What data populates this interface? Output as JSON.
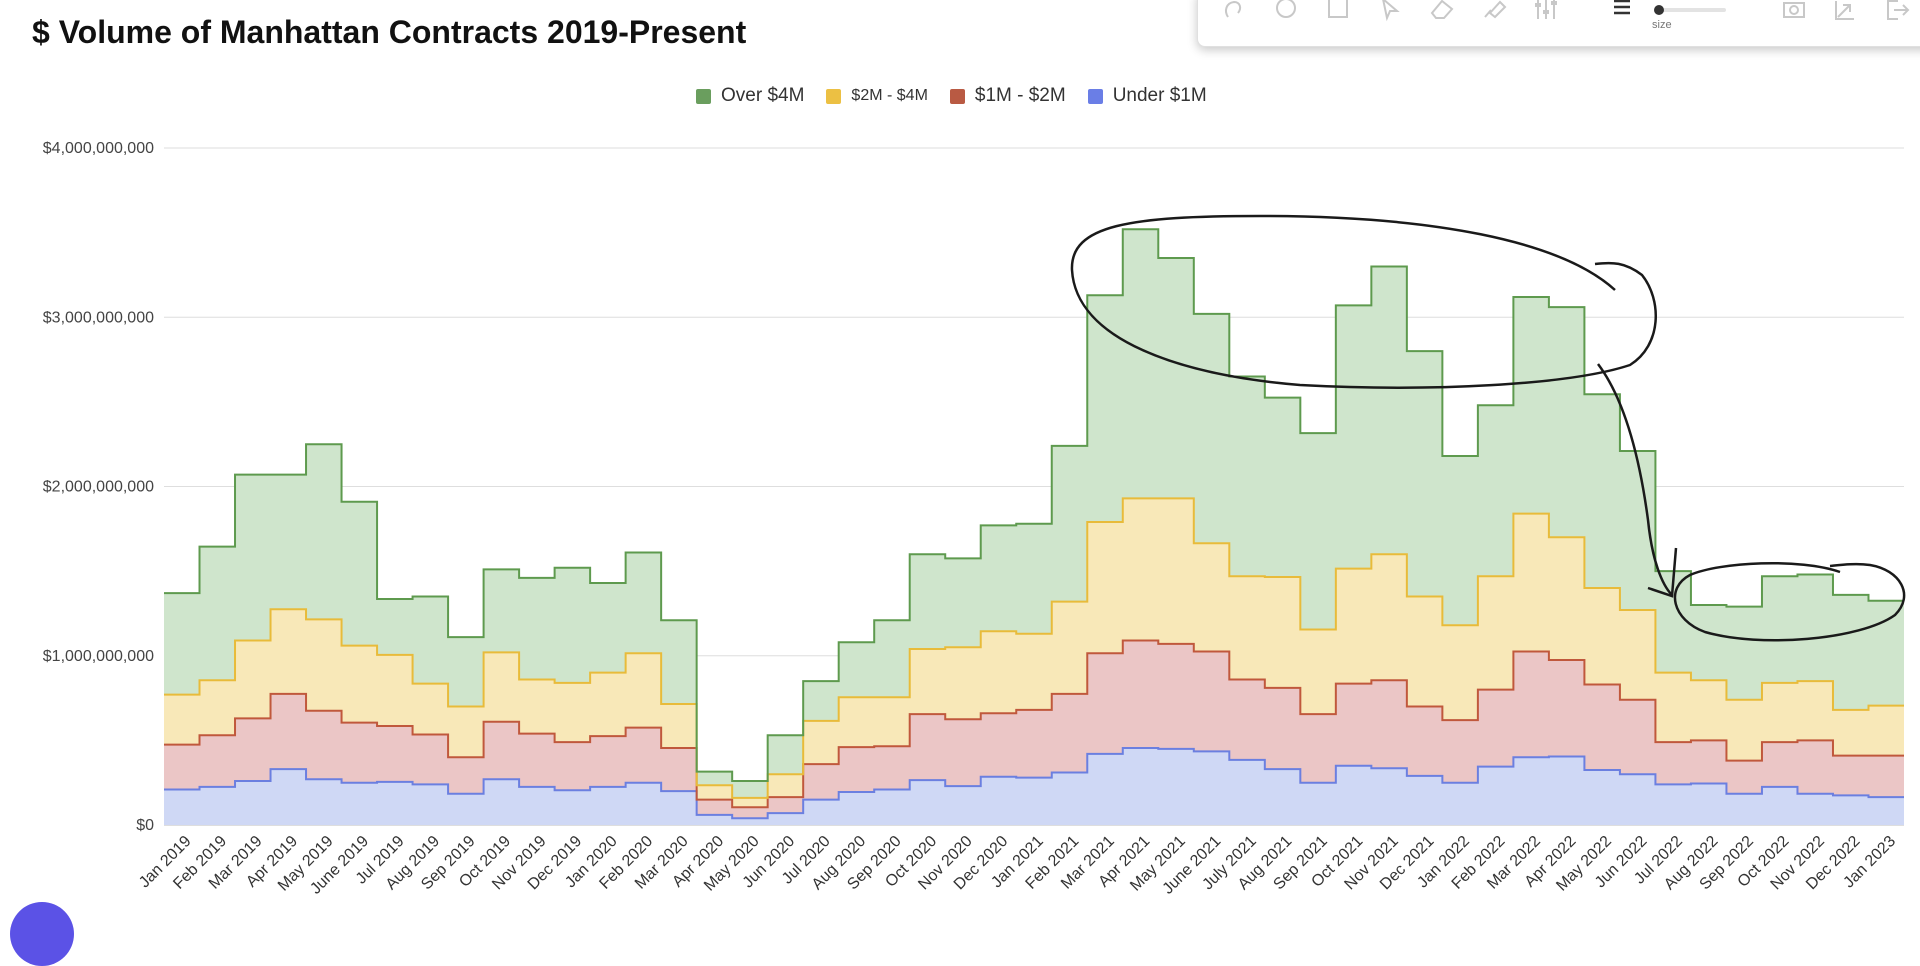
{
  "chart_data": {
    "type": "area",
    "stacked": true,
    "step": true,
    "title": "$ Volume of Manhattan Contracts 2019-Present",
    "xlabel": "",
    "ylabel": "",
    "ylim": [
      0,
      4000000000
    ],
    "yticks": [
      0,
      1000000000,
      2000000000,
      3000000000,
      4000000000
    ],
    "ytick_labels": [
      "$0",
      "$1,000,000,000",
      "$2,000,000,000",
      "$3,000,000,000",
      "$4,000,000,000"
    ],
    "grid": true,
    "legend_position": "top-center",
    "categories": [
      "Jan 2019",
      "Feb 2019",
      "Mar 2019",
      "Apr 2019",
      "May 2019",
      "June 2019",
      "Jul 2019",
      "Aug 2019",
      "Sep 2019",
      "Oct 2019",
      "Nov 2019",
      "Dec 2019",
      "Jan 2020",
      "Feb 2020",
      "Mar 2020",
      "Apr 2020",
      "May 2020",
      "Jun 2020",
      "Jul 2020",
      "Aug 2020",
      "Sep 2020",
      "Oct 2020",
      "Nov 2020",
      "Dec 2020",
      "Jan 2021",
      "Feb 2021",
      "Mar 2021",
      "Apr 2021",
      "May 2021",
      "June 2021",
      "July 2021",
      "Aug 2021",
      "Sep 2021",
      "Oct 2021",
      "Nov 2021",
      "Dec 2021",
      "Jan 2022",
      "Feb 2022",
      "Mar 2022",
      "Apr 2022",
      "May 2022",
      "Jun 2022",
      "Jul 2022",
      "Aug 2022",
      "Sep 2022",
      "Oct 2022",
      "Nov 2022",
      "Dec 2022",
      "Jan 2023"
    ],
    "series": [
      {
        "name": "Under $1M",
        "color": "#6b7fe0",
        "fill": "#cfd8f5",
        "values": [
          210000000,
          225000000,
          260000000,
          330000000,
          270000000,
          250000000,
          255000000,
          240000000,
          185000000,
          270000000,
          225000000,
          205000000,
          225000000,
          250000000,
          200000000,
          60000000,
          40000000,
          70000000,
          150000000,
          195000000,
          210000000,
          265000000,
          230000000,
          285000000,
          280000000,
          310000000,
          420000000,
          455000000,
          450000000,
          435000000,
          385000000,
          330000000,
          250000000,
          350000000,
          335000000,
          290000000,
          250000000,
          345000000,
          400000000,
          405000000,
          325000000,
          300000000,
          240000000,
          245000000,
          185000000,
          225000000,
          185000000,
          175000000,
          165000000
        ]
      },
      {
        "name": "$1M - $2M",
        "color": "#c0583c",
        "fill": "#ebc6c6",
        "values": [
          265000000,
          305000000,
          370000000,
          445000000,
          405000000,
          355000000,
          330000000,
          295000000,
          215000000,
          340000000,
          315000000,
          285000000,
          300000000,
          325000000,
          255000000,
          90000000,
          65000000,
          95000000,
          210000000,
          265000000,
          255000000,
          390000000,
          395000000,
          375000000,
          400000000,
          465000000,
          595000000,
          635000000,
          620000000,
          590000000,
          475000000,
          480000000,
          405000000,
          485000000,
          520000000,
          410000000,
          370000000,
          455000000,
          625000000,
          570000000,
          505000000,
          440000000,
          250000000,
          255000000,
          195000000,
          265000000,
          315000000,
          235000000,
          245000000
        ]
      },
      {
        "name": "$2M - $4M",
        "color": "#e8bb3a",
        "fill": "#f8e8b8",
        "values": [
          295000000,
          325000000,
          460000000,
          500000000,
          540000000,
          455000000,
          420000000,
          300000000,
          300000000,
          410000000,
          320000000,
          350000000,
          375000000,
          440000000,
          260000000,
          85000000,
          55000000,
          135000000,
          255000000,
          295000000,
          290000000,
          385000000,
          425000000,
          485000000,
          450000000,
          545000000,
          775000000,
          840000000,
          860000000,
          640000000,
          610000000,
          655000000,
          500000000,
          680000000,
          745000000,
          650000000,
          560000000,
          670000000,
          815000000,
          725000000,
          570000000,
          530000000,
          410000000,
          355000000,
          360000000,
          350000000,
          350000000,
          270000000,
          295000000
        ]
      },
      {
        "name": "Over $4M",
        "color": "#5e9a4e",
        "fill": "#cfe5cc",
        "values": [
          600000000,
          790000000,
          980000000,
          795000000,
          1035000000,
          850000000,
          330000000,
          515000000,
          410000000,
          490000000,
          600000000,
          680000000,
          530000000,
          595000000,
          495000000,
          80000000,
          100000000,
          230000000,
          235000000,
          325000000,
          455000000,
          560000000,
          525000000,
          625000000,
          650000000,
          920000000,
          1340000000,
          1590000000,
          1420000000,
          1355000000,
          1180000000,
          1060000000,
          1160000000,
          1555000000,
          1700000000,
          1450000000,
          1000000000,
          1010000000,
          1280000000,
          1360000000,
          1145000000,
          940000000,
          600000000,
          445000000,
          550000000,
          630000000,
          630000000,
          680000000,
          620000000
        ]
      }
    ]
  },
  "toolbar": {
    "size_label": "size",
    "icons": [
      "lasso-icon",
      "circle-icon",
      "square-icon",
      "pointer-icon",
      "eraser-icon",
      "highlighter-icon",
      "sliders-icon",
      "line-weight-icon",
      "camera-icon",
      "export-icon",
      "exit-icon"
    ]
  }
}
